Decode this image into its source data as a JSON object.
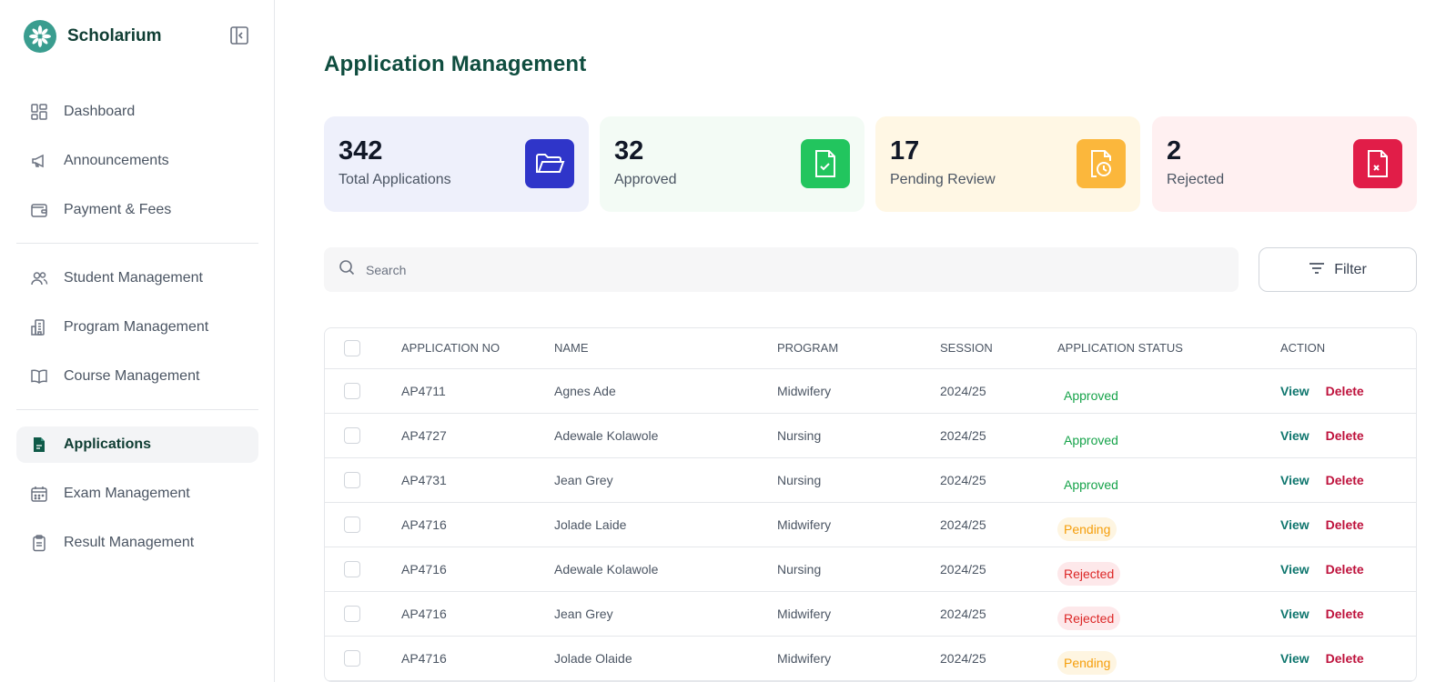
{
  "brand": {
    "name": "Scholarium"
  },
  "sidebar": {
    "group1": [
      {
        "label": "Dashboard",
        "icon": "dashboard-icon"
      },
      {
        "label": "Announcements",
        "icon": "megaphone-icon"
      },
      {
        "label": "Payment & Fees",
        "icon": "wallet-icon"
      }
    ],
    "group2": [
      {
        "label": "Student Management",
        "icon": "users-icon"
      },
      {
        "label": "Program Management",
        "icon": "building-icon"
      },
      {
        "label": "Course Management",
        "icon": "book-icon"
      }
    ],
    "group3": [
      {
        "label": "Applications",
        "icon": "document-icon",
        "active": true
      },
      {
        "label": "Exam Management",
        "icon": "calendar-icon"
      },
      {
        "label": "Result Management",
        "icon": "clipboard-icon"
      }
    ]
  },
  "page": {
    "title": "Application Management"
  },
  "stats": [
    {
      "value": "342",
      "label": "Total Applications",
      "bg": "#eef0fb",
      "icon_bg": "#2f35c9",
      "icon": "folder-icon"
    },
    {
      "value": "32",
      "label": "Approved",
      "bg": "#f3fbf5",
      "icon_bg": "#22c55e",
      "icon": "file-check-icon"
    },
    {
      "value": "17",
      "label": "Pending Review",
      "bg": "#fff7e4",
      "icon_bg": "#fbb73c",
      "icon": "file-clock-icon"
    },
    {
      "value": "2",
      "label": "Rejected",
      "bg": "#fff0f1",
      "icon_bg": "#e11d48",
      "icon": "file-x-icon"
    }
  ],
  "search": {
    "placeholder": "Search"
  },
  "filter": {
    "label": "Filter"
  },
  "table": {
    "headers": [
      "APPLICATION NO",
      "NAME",
      "PROGRAM",
      "SESSION",
      "APPLICATION STATUS",
      "ACTION"
    ],
    "view_label": "View",
    "delete_label": "Delete",
    "rows": [
      {
        "app_no": "AP4711",
        "name": "Agnes Ade",
        "program": "Midwifery",
        "session": "2024/25",
        "status": "Approved"
      },
      {
        "app_no": "AP4727",
        "name": "Adewale Kolawole",
        "program": "Nursing",
        "session": "2024/25",
        "status": "Approved"
      },
      {
        "app_no": "AP4731",
        "name": "Jean Grey",
        "program": "Nursing",
        "session": "2024/25",
        "status": "Approved"
      },
      {
        "app_no": "AP4716",
        "name": "Jolade Laide",
        "program": "Midwifery",
        "session": "2024/25",
        "status": "Pending"
      },
      {
        "app_no": "AP4716",
        "name": "Adewale Kolawole",
        "program": "Nursing",
        "session": "2024/25",
        "status": "Rejected"
      },
      {
        "app_no": "AP4716",
        "name": "Jean Grey",
        "program": "Midwifery",
        "session": "2024/25",
        "status": "Rejected"
      },
      {
        "app_no": "AP4716",
        "name": "Jolade Olaide",
        "program": "Midwifery",
        "session": "2024/25",
        "status": "Pending"
      }
    ]
  }
}
